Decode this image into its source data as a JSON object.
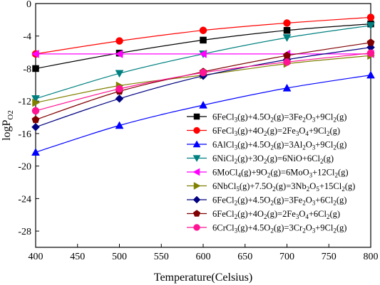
{
  "chart_data": {
    "type": "line",
    "xlabel": "Temperature(Celsius)",
    "ylabel": {
      "main": "logP",
      "sub": "O2"
    },
    "xlim": [
      400,
      800
    ],
    "ylim": [
      -30,
      0
    ],
    "xticks": [
      400,
      450,
      500,
      550,
      600,
      650,
      700,
      750,
      800
    ],
    "yticks": [
      0,
      -4,
      -8,
      -12,
      -16,
      -20,
      -24,
      -28
    ],
    "x": [
      400,
      500,
      600,
      700,
      800
    ],
    "series": [
      {
        "name": "6FeCl3(g)+4.5O2(g)=3Fe2O3+9Cl2(g)",
        "label_parts": [
          [
            "6FeCl",
            "n"
          ],
          [
            "3",
            "sub"
          ],
          [
            "(g)+4.5O",
            "n"
          ],
          [
            "2",
            "sub"
          ],
          [
            "(g)=3Fe",
            "n"
          ],
          [
            "2",
            "sub"
          ],
          [
            "O",
            "n"
          ],
          [
            "3",
            "sub"
          ],
          [
            "+9Cl",
            "n"
          ],
          [
            "2",
            "sub"
          ],
          [
            "(g)",
            "n"
          ]
        ],
        "color": "#000000",
        "marker": "square",
        "values": [
          -8.0,
          -6.1,
          -4.5,
          -3.3,
          -2.5
        ]
      },
      {
        "name": "6FeCl3(g)+4O2(g)=2Fe3O4+9Cl2(g)",
        "label_parts": [
          [
            "6FeCl",
            "n"
          ],
          [
            "3",
            "sub"
          ],
          [
            "(g)+4O",
            "n"
          ],
          [
            "2",
            "sub"
          ],
          [
            "(g)=2Fe",
            "n"
          ],
          [
            "3",
            "sub"
          ],
          [
            "O",
            "n"
          ],
          [
            "4",
            "sub"
          ],
          [
            "+9Cl",
            "n"
          ],
          [
            "2",
            "sub"
          ],
          [
            "(g)",
            "n"
          ]
        ],
        "color": "#ff0000",
        "marker": "circle",
        "values": [
          -6.2,
          -4.6,
          -3.3,
          -2.4,
          -1.7
        ]
      },
      {
        "name": "6AlCl3(g)+4.5O2(g)=3Al2O3+9Cl2(g)",
        "label_parts": [
          [
            "6AlCl",
            "n"
          ],
          [
            "3",
            "sub"
          ],
          [
            "(g)+4.5O",
            "n"
          ],
          [
            "2",
            "sub"
          ],
          [
            "(g)=3Al",
            "n"
          ],
          [
            "2",
            "sub"
          ],
          [
            "O",
            "n"
          ],
          [
            "3",
            "sub"
          ],
          [
            "+9Cl",
            "n"
          ],
          [
            "2",
            "sub"
          ],
          [
            "(g)",
            "n"
          ]
        ],
        "color": "#0000ff",
        "marker": "triangle-up",
        "values": [
          -18.3,
          -15.0,
          -12.5,
          -10.4,
          -8.8
        ]
      },
      {
        "name": "6NiCl2(g)+3O2(g)=6NiO+6Cl2(g)",
        "label_parts": [
          [
            "6NiCl",
            "n"
          ],
          [
            "2",
            "sub"
          ],
          [
            "(g)+3O",
            "n"
          ],
          [
            "2",
            "sub"
          ],
          [
            "(g)=6NiO+6Cl",
            "n"
          ],
          [
            "2",
            "sub"
          ],
          [
            "(g)",
            "n"
          ]
        ],
        "color": "#008080",
        "marker": "triangle-down",
        "values": [
          -11.7,
          -8.6,
          -6.2,
          -4.2,
          -2.7
        ]
      },
      {
        "name": "6MoCl4(g)+9O2(g)=6MoO3+12Cl2(g)",
        "label_parts": [
          [
            "6MoCl",
            "n"
          ],
          [
            "4",
            "sub"
          ],
          [
            "(g)+9O",
            "n"
          ],
          [
            "2",
            "sub"
          ],
          [
            "(g)=6MoO",
            "n"
          ],
          [
            "3",
            "sub"
          ],
          [
            "+12Cl",
            "n"
          ],
          [
            "2",
            "sub"
          ],
          [
            "(g)",
            "n"
          ]
        ],
        "color": "#ff00ff",
        "marker": "triangle-left",
        "values": [
          -6.2,
          -6.2,
          -6.2,
          -6.2,
          -6.2
        ]
      },
      {
        "name": "6NbCl5(g)+7.5O2(g)=3Nb2O5+15Cl2(g)",
        "label_parts": [
          [
            "6NbCl",
            "n"
          ],
          [
            "5",
            "sub"
          ],
          [
            "(g)+7.5O",
            "n"
          ],
          [
            "2",
            "sub"
          ],
          [
            "(g)=3Nb",
            "n"
          ],
          [
            "2",
            "sub"
          ],
          [
            "O",
            "n"
          ],
          [
            "5",
            "sub"
          ],
          [
            "+15Cl",
            "n"
          ],
          [
            "2",
            "sub"
          ],
          [
            "(g)",
            "n"
          ]
        ],
        "color": "#808000",
        "marker": "triangle-right",
        "values": [
          -12.2,
          -10.1,
          -8.8,
          -7.4,
          -6.4
        ]
      },
      {
        "name": "6FeCl2(g)+4.5O2(g)=3Fe2O3+6Cl2(g)",
        "label_parts": [
          [
            "6FeCl",
            "n"
          ],
          [
            "2",
            "sub"
          ],
          [
            "(g)+4.5O",
            "n"
          ],
          [
            "2",
            "sub"
          ],
          [
            "(g)=3Fe",
            "n"
          ],
          [
            "2",
            "sub"
          ],
          [
            "O",
            "n"
          ],
          [
            "3",
            "sub"
          ],
          [
            "+6Cl",
            "n"
          ],
          [
            "2",
            "sub"
          ],
          [
            "(g)",
            "n"
          ]
        ],
        "color": "#000080",
        "marker": "diamond",
        "values": [
          -15.2,
          -11.7,
          -8.9,
          -6.9,
          -5.4
        ]
      },
      {
        "name": "6FeCl2(g)+4O2(g)=2Fe3O4+6Cl2(g)",
        "label_parts": [
          [
            "6FeCl",
            "n"
          ],
          [
            "2",
            "sub"
          ],
          [
            "(g)+4O",
            "n"
          ],
          [
            "2",
            "sub"
          ],
          [
            "(g)=2Fe",
            "n"
          ],
          [
            "3",
            "sub"
          ],
          [
            "O",
            "n"
          ],
          [
            "4",
            "sub"
          ],
          [
            "+6Cl",
            "n"
          ],
          [
            "2",
            "sub"
          ],
          [
            "(g)",
            "n"
          ]
        ],
        "color": "#800000",
        "marker": "pentagon",
        "values": [
          -14.3,
          -10.8,
          -8.4,
          -6.4,
          -4.8
        ]
      },
      {
        "name": "6CrCl3(g)+4.5O2(g)=3Cr2O3+9Cl2(g)",
        "label_parts": [
          [
            "6CrCl",
            "n"
          ],
          [
            "3",
            "sub"
          ],
          [
            "(g)+4.5O",
            "n"
          ],
          [
            "2",
            "sub"
          ],
          [
            "(g)=3Cr",
            "n"
          ],
          [
            "2",
            "sub"
          ],
          [
            "O",
            "n"
          ],
          [
            "3",
            "sub"
          ],
          [
            "+9Cl",
            "n"
          ],
          [
            "2",
            "sub"
          ],
          [
            "(g)",
            "n"
          ]
        ],
        "color": "#ff1493",
        "marker": "circle",
        "values": [
          -13.2,
          -10.5,
          -8.5,
          -7.2,
          -6.1
        ]
      }
    ],
    "legend_position": "lower-right",
    "grid": false
  }
}
